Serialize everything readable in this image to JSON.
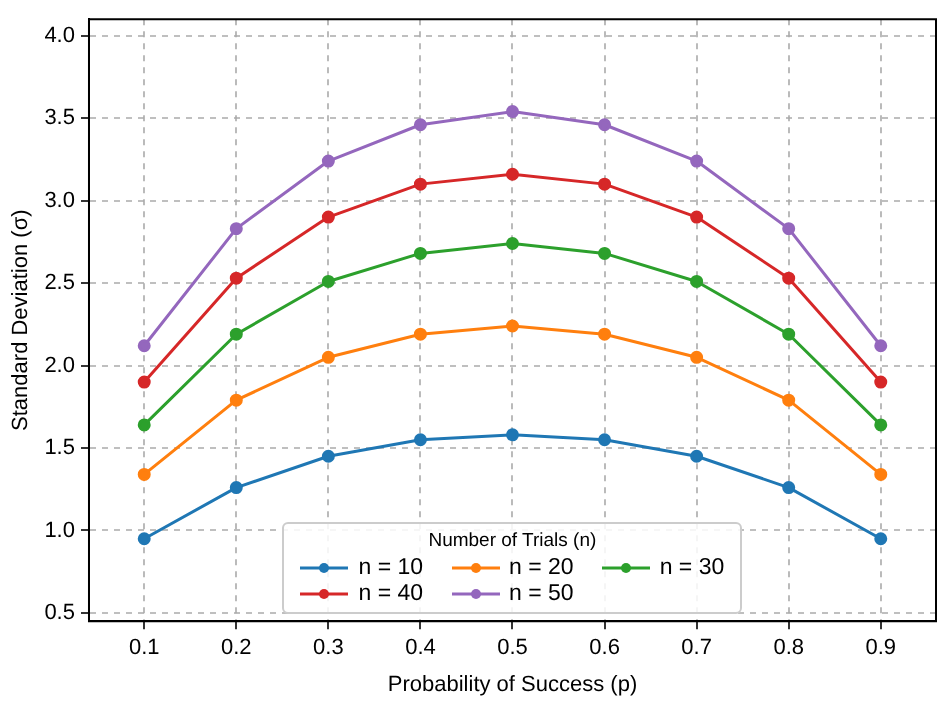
{
  "chart_data": {
    "type": "line",
    "xlabel": "Probability of Success (p)",
    "ylabel": "Standard Deviation (σ)",
    "legend_title": "Number of Trials (n)",
    "x": [
      0.1,
      0.2,
      0.3,
      0.4,
      0.5,
      0.6,
      0.7,
      0.8,
      0.9
    ],
    "series": [
      {
        "name": "n = 10",
        "color": "#1f77b4",
        "values": [
          0.95,
          1.26,
          1.45,
          1.55,
          1.58,
          1.55,
          1.45,
          1.26,
          0.95
        ]
      },
      {
        "name": "n = 20",
        "color": "#ff7f0e",
        "values": [
          1.34,
          1.79,
          2.05,
          2.19,
          2.24,
          2.19,
          2.05,
          1.79,
          1.34
        ]
      },
      {
        "name": "n = 30",
        "color": "#2ca02c",
        "values": [
          1.64,
          2.19,
          2.51,
          2.68,
          2.74,
          2.68,
          2.51,
          2.19,
          1.64
        ]
      },
      {
        "name": "n = 40",
        "color": "#d62728",
        "values": [
          1.9,
          2.53,
          2.9,
          3.1,
          3.16,
          3.1,
          2.9,
          2.53,
          1.9
        ]
      },
      {
        "name": "n = 50",
        "color": "#9467bd",
        "values": [
          2.12,
          2.83,
          3.24,
          3.46,
          3.54,
          3.46,
          3.24,
          2.83,
          2.12
        ]
      }
    ],
    "xlim": [
      0.04,
      0.96
    ],
    "xticks": [
      0.1,
      0.2,
      0.3,
      0.4,
      0.5,
      0.6,
      0.7,
      0.8,
      0.9
    ],
    "ylim": [
      0.45,
      4.1
    ],
    "yticks": [
      0.5,
      {
        "value": 1,
        "label": "1.0"
      },
      1.5,
      {
        "value": 2,
        "label": "2.0"
      },
      2.5,
      {
        "value": 3,
        "label": "3.0"
      },
      3.5,
      {
        "value": 4,
        "label": "4.0"
      }
    ],
    "grid": true,
    "legend": "bottom",
    "marker": "circle",
    "line_style": "solid"
  }
}
